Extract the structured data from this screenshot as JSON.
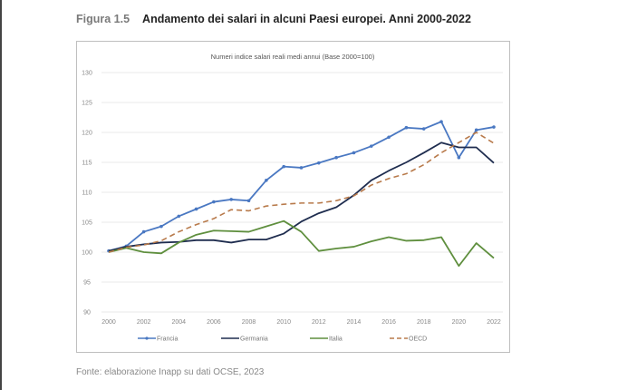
{
  "figure": {
    "number": "Figura 1.5",
    "title": "Andamento dei salari in alcuni Paesi europei. Anni 2000-2022"
  },
  "source": "Fonte: elaborazione Inapp su dati OCSE, 2023",
  "chart_data": {
    "type": "line",
    "title": "Numeri indice salari reali medi annui (Base 2000=100)",
    "xlabel": "",
    "ylabel": "",
    "x": [
      2000,
      2001,
      2002,
      2003,
      2004,
      2005,
      2006,
      2007,
      2008,
      2009,
      2010,
      2011,
      2012,
      2013,
      2014,
      2015,
      2016,
      2017,
      2018,
      2019,
      2020,
      2021,
      2022
    ],
    "x_tick_labels": [
      "2000",
      "2002",
      "2004",
      "2006",
      "2008",
      "2010",
      "2012",
      "2014",
      "2016",
      "2018",
      "2020",
      "2022"
    ],
    "ylim": [
      90,
      130
    ],
    "y_tick_labels": [
      "90",
      "95",
      "100",
      "105",
      "110",
      "115",
      "120",
      "125",
      "130"
    ],
    "grid": "horizontal",
    "legend": "bottom",
    "series": [
      {
        "name": "Francia",
        "color": "#4a78c2",
        "style": "solid-markers",
        "values": [
          100.2,
          101.0,
          103.4,
          104.3,
          106.0,
          107.2,
          108.4,
          108.8,
          108.6,
          112.0,
          114.3,
          114.1,
          114.9,
          115.8,
          116.6,
          117.7,
          119.2,
          120.8,
          120.6,
          121.8,
          115.8,
          120.4,
          120.9
        ]
      },
      {
        "name": "Germania",
        "color": "#1f2d4f",
        "style": "solid",
        "values": [
          100.2,
          100.9,
          101.3,
          101.6,
          101.7,
          102.0,
          102.0,
          101.6,
          102.1,
          102.1,
          103.1,
          105.1,
          106.5,
          107.5,
          109.5,
          112.0,
          113.6,
          115.0,
          116.6,
          118.3,
          117.5,
          117.5,
          114.9
        ]
      },
      {
        "name": "Italia",
        "color": "#5f8f3e",
        "style": "solid",
        "values": [
          100.0,
          100.7,
          100.0,
          99.8,
          101.6,
          102.9,
          103.6,
          103.5,
          103.4,
          104.3,
          105.2,
          103.4,
          100.2,
          100.6,
          100.9,
          101.8,
          102.5,
          101.9,
          102.0,
          102.5,
          97.7,
          101.5,
          99.0
        ]
      },
      {
        "name": "OECD",
        "color": "#b87a4b",
        "style": "dashed",
        "values": [
          100.0,
          100.8,
          101.2,
          101.9,
          103.4,
          104.6,
          105.6,
          107.1,
          106.9,
          107.7,
          108.0,
          108.2,
          108.2,
          108.6,
          109.4,
          111.2,
          112.3,
          113.1,
          114.6,
          116.6,
          118.3,
          120.0,
          118.2
        ]
      }
    ]
  }
}
